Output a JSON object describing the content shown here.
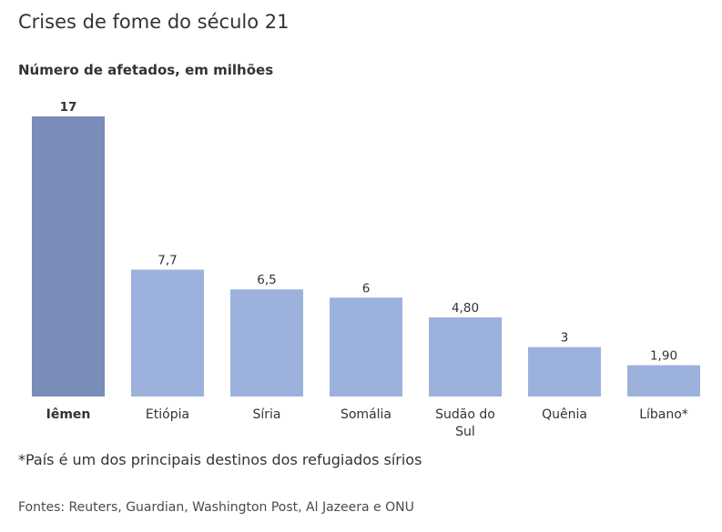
{
  "chart_data": {
    "type": "bar",
    "title": "Crises de fome do século 21",
    "subtitle": "Número de afetados, em milhões",
    "categories": [
      "Iêmen",
      "Etiópia",
      "Síria",
      "Somália",
      "Sudão do Sul",
      "Quênia",
      "Líbano*"
    ],
    "values": [
      17,
      7.7,
      6.5,
      6,
      4.8,
      3,
      1.9
    ],
    "value_labels": [
      "17",
      "7,7",
      "6,5",
      "6",
      "4,80",
      "3",
      "1,90"
    ],
    "highlight_index": 0,
    "colors": {
      "highlight": "#7a8db8",
      "default": "#9cb2dd"
    },
    "ylim": [
      0,
      17
    ],
    "grid": false
  },
  "note": "*País é um dos principais destinos dos refugiados sírios",
  "sources": "Fontes: Reuters, Guardian, Washington Post, Al Jazeera e ONU"
}
